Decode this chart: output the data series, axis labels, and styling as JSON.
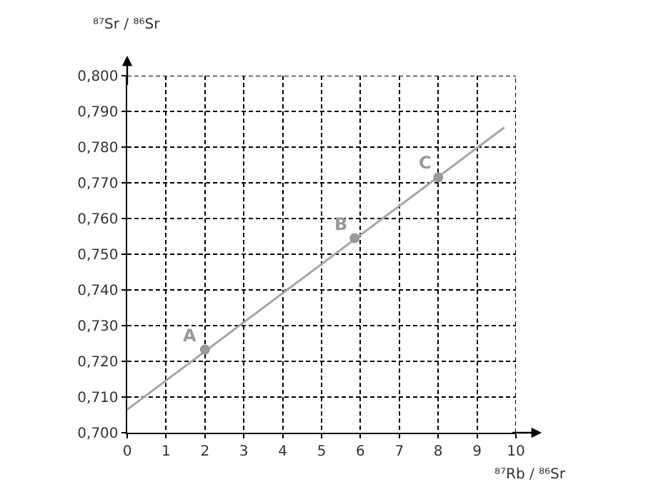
{
  "chart_data": {
    "type": "scatter",
    "xlabel": "⁸⁷Rb / ⁸⁶Sr",
    "ylabel": "⁸⁷Sr / ⁸⁶Sr",
    "series": [
      {
        "type": "line",
        "color": "#a6a6a6",
        "x": [
          0,
          9.7
        ],
        "values": [
          0.7065,
          0.7855
        ],
        "marker": "none"
      },
      {
        "color": "#999999",
        "x": [
          2,
          5.85,
          8
        ],
        "values": [
          0.7233,
          0.7545,
          0.7715
        ],
        "marker": "circle"
      }
    ],
    "annotations": [
      {
        "text": "A",
        "x": 2,
        "y": 0.7233
      },
      {
        "text": "B",
        "x": 5.85,
        "y": 0.7545
      },
      {
        "text": "C",
        "x": 8,
        "y": 0.7715
      }
    ],
    "xlim": [
      0,
      10
    ],
    "xticks": [
      0,
      1,
      2,
      3,
      4,
      5,
      6,
      7,
      8,
      9,
      10
    ],
    "ylim": [
      0.7,
      0.8
    ],
    "yticks": [
      {
        "value": 0.7,
        "label": "0,700"
      },
      {
        "value": 0.71,
        "label": "0,710"
      },
      {
        "value": 0.72,
        "label": "0,720"
      },
      {
        "value": 0.73,
        "label": "0,730"
      },
      {
        "value": 0.74,
        "label": "0,740"
      },
      {
        "value": 0.75,
        "label": "0,750"
      },
      {
        "value": 0.76,
        "label": "0,760"
      },
      {
        "value": 0.77,
        "label": "0,770"
      },
      {
        "value": 0.78,
        "label": "0,780"
      },
      {
        "value": 0.79,
        "label": "0,790"
      },
      {
        "value": 0.8,
        "label": "0,800"
      }
    ],
    "grid": true
  }
}
